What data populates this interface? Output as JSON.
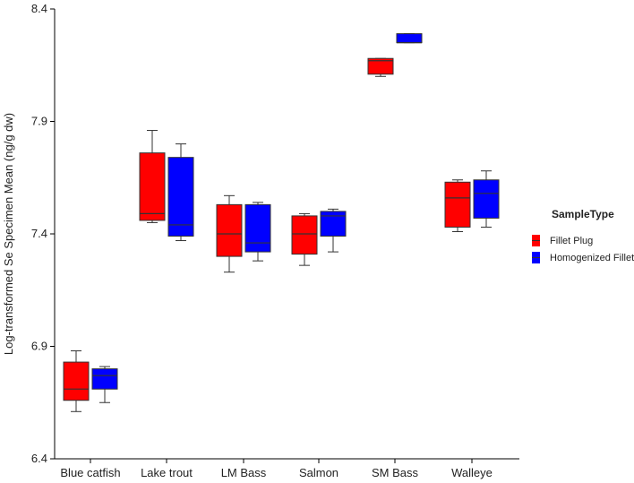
{
  "chart_data": {
    "type": "boxplot",
    "title": "",
    "xlabel": "",
    "ylabel": "Log-transformed Se Specimen Mean (ng/g dw)",
    "ylim": [
      6.4,
      8.4
    ],
    "yticks": [
      "6.4",
      "6.9",
      "7.4",
      "7.9",
      "8.4"
    ],
    "grid": false,
    "legend_position": "right",
    "legend_title": "SampleType",
    "categories": [
      "Blue catfish",
      "Lake trout",
      "LM Bass",
      "Salmon",
      "SM Bass",
      "Walleye"
    ],
    "series": [
      {
        "name": "Fillet Plug",
        "color": "#ff0000",
        "boxes": [
          {
            "min": 6.61,
            "q1": 6.66,
            "median": 6.71,
            "q3": 6.83,
            "max": 6.88
          },
          {
            "min": 7.45,
            "q1": 7.46,
            "median": 7.49,
            "q3": 7.76,
            "max": 7.86
          },
          {
            "min": 7.23,
            "q1": 7.3,
            "median": 7.4,
            "q3": 7.53,
            "max": 7.57
          },
          {
            "min": 7.26,
            "q1": 7.31,
            "median": 7.4,
            "q3": 7.48,
            "max": 7.49
          },
          {
            "min": 8.1,
            "q1": 8.11,
            "median": 8.17,
            "q3": 8.18,
            "max": 8.18
          },
          {
            "min": 7.41,
            "q1": 7.43,
            "median": 7.56,
            "q3": 7.63,
            "max": 7.64
          }
        ]
      },
      {
        "name": "Homogenized Fillet",
        "color": "#0000ff",
        "boxes": [
          {
            "min": 6.65,
            "q1": 6.71,
            "median": 6.77,
            "q3": 6.8,
            "max": 6.81
          },
          {
            "min": 7.37,
            "q1": 7.39,
            "median": 7.44,
            "q3": 7.74,
            "max": 7.8
          },
          {
            "min": 7.28,
            "q1": 7.32,
            "median": 7.36,
            "q3": 7.53,
            "max": 7.54
          },
          {
            "min": 7.32,
            "q1": 7.39,
            "median": 7.48,
            "q3": 7.5,
            "max": 7.51
          },
          {
            "min": 8.25,
            "q1": 8.25,
            "median": 8.25,
            "q3": 8.29,
            "max": 8.29
          },
          {
            "min": 7.43,
            "q1": 7.47,
            "median": 7.58,
            "q3": 7.64,
            "max": 7.68
          }
        ]
      }
    ]
  }
}
